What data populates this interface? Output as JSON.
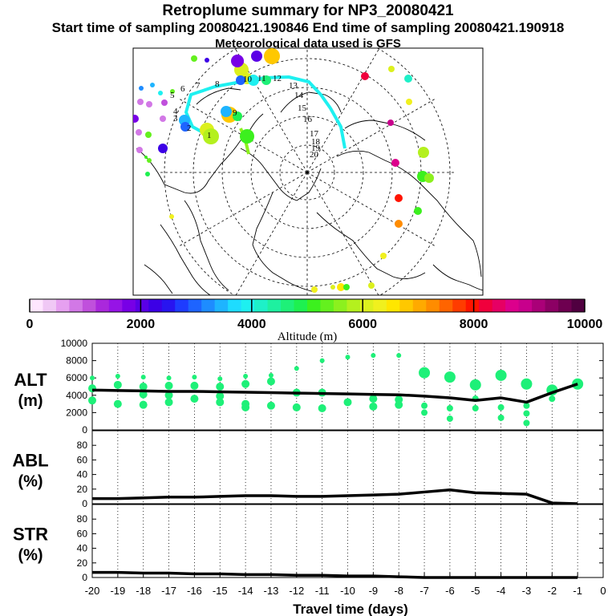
{
  "header": {
    "title": "Retroplume summary for NP3_20080421",
    "sampling": "Start time of sampling 20080421.190846     End time of sampling 20080421.190918",
    "met": "Meteorological data used is GFS"
  },
  "colorbar": {
    "label": "Altitude (m)",
    "ticks": [
      "0",
      "2000",
      "4000",
      "6000",
      "8000",
      "10000"
    ],
    "colors": [
      "#ffe6ff",
      "#f0c8f5",
      "#e6a0f0",
      "#d278e6",
      "#c050dc",
      "#aa28dc",
      "#9614e6",
      "#7800e6",
      "#5a00e6",
      "#3c00e6",
      "#2814f0",
      "#1e3cff",
      "#1e64ff",
      "#1e8cff",
      "#1eb4ff",
      "#1edcff",
      "#1ef0f0",
      "#1ef0c8",
      "#1ef0a0",
      "#1ef078",
      "#1ef050",
      "#3cf01e",
      "#64f01e",
      "#8cf01e",
      "#b4f01e",
      "#dcf01e",
      "#f0f01e",
      "#ffe600",
      "#ffc800",
      "#ffaa00",
      "#ff8c00",
      "#ff6400",
      "#ff3c00",
      "#ff1400",
      "#f0003c",
      "#e60064",
      "#dc008c",
      "#c8008c",
      "#aa0078",
      "#8c0064",
      "#6e0050",
      "#500040"
    ]
  },
  "map": {
    "path_labels": [
      "1",
      "2",
      "3",
      "4",
      "5",
      "6",
      "7",
      "8",
      "9",
      "10",
      "11",
      "12",
      "13",
      "14",
      "15",
      "16",
      "17",
      "18",
      "19",
      "20"
    ]
  },
  "chart_data": [
    {
      "type": "line",
      "name": "ALT",
      "ylabel": "ALT\n(m)",
      "ylabel_line1": "ALT",
      "ylabel_line2": "(m)",
      "ylim": [
        0,
        10000
      ],
      "yticks": [
        "0",
        "2000",
        "4000",
        "6000",
        "8000",
        "10000"
      ],
      "x": [
        -20,
        -19,
        -18,
        -17,
        -16,
        -15,
        -14,
        -13,
        -12,
        -11,
        -10,
        -9,
        -8,
        -7,
        -6,
        -5,
        -4,
        -3,
        -2,
        -1
      ],
      "values": [
        4600,
        4550,
        4500,
        4450,
        4450,
        4400,
        4350,
        4300,
        4250,
        4200,
        4150,
        4100,
        4050,
        3900,
        3700,
        3400,
        3700,
        3200,
        4300,
        5300
      ]
    },
    {
      "type": "line",
      "name": "ABL",
      "ylabel_line1": "ABL",
      "ylabel_line2": "(%)",
      "ylim": [
        0,
        100
      ],
      "yticks": [
        "0",
        "20",
        "40",
        "60",
        "80"
      ],
      "x": [
        -20,
        -19,
        -18,
        -17,
        -16,
        -15,
        -14,
        -13,
        -12,
        -11,
        -10,
        -9,
        -8,
        -7,
        -6,
        -5,
        -4,
        -3,
        -2,
        -1
      ],
      "values": [
        7,
        7,
        8,
        9,
        9,
        10,
        11,
        11,
        10,
        10,
        11,
        12,
        13,
        16,
        19,
        15,
        14,
        13,
        1,
        0
      ]
    },
    {
      "type": "line",
      "name": "STR",
      "ylabel_line1": "STR",
      "ylabel_line2": "(%)",
      "ylim": [
        0,
        100
      ],
      "yticks": [
        "0",
        "20",
        "40",
        "60",
        "80"
      ],
      "xlabel": "Travel time (days)",
      "xticks": [
        "-20",
        "-19",
        "-18",
        "-17",
        "-16",
        "-15",
        "-14",
        "-13",
        "-12",
        "-11",
        "-10",
        "-9",
        "-8",
        "-7",
        "-6",
        "-5",
        "-4",
        "-3",
        "-2",
        "-1",
        "0"
      ],
      "x": [
        -20,
        -19,
        -18,
        -17,
        -16,
        -15,
        -14,
        -13,
        -12,
        -11,
        -10,
        -9,
        -8,
        -7,
        -6,
        -5,
        -4,
        -3,
        -2,
        -1
      ],
      "values": [
        7,
        7,
        6,
        6,
        5,
        5,
        4,
        4,
        3,
        3,
        2,
        2,
        1,
        0,
        0,
        0,
        0,
        0,
        0,
        0
      ]
    }
  ]
}
